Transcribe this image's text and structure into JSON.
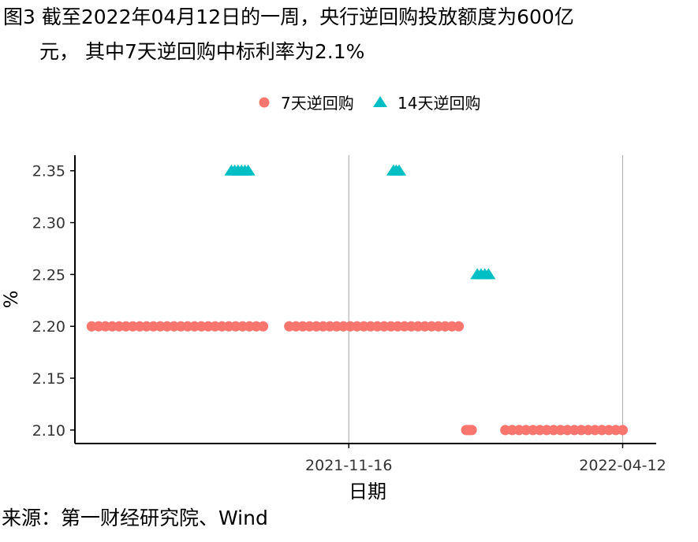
{
  "figure": {
    "caption_line1": "图3  截至2022年04月12日的一周，央行逆回购投放额度为600亿",
    "caption_line2": "元， 其中7天逆回购中标利率为2.1%",
    "source": "来源：第一财经研究院、Wind"
  },
  "chart_data": {
    "type": "scatter",
    "title": "",
    "xlabel": "日期",
    "ylabel": "%",
    "x_ticks": [
      "2021-11-16",
      "2022-04-12"
    ],
    "y_ticks": [
      2.1,
      2.15,
      2.2,
      2.25,
      2.3,
      2.35
    ],
    "xlim": [
      "2021-06-22",
      "2022-04-30"
    ],
    "ylim": [
      2.087,
      2.365
    ],
    "grid": "vertical major lines at x ticks",
    "legend_position": "top",
    "colors": {
      "seven_day": "#F8766D",
      "fourteen_day": "#00BFC4",
      "grid": "#b3b3b3",
      "axis": "#000000"
    },
    "series": [
      {
        "name": "7天逆回购",
        "marker": "circle",
        "points": [
          {
            "start": "2021-07-01",
            "end": "2021-10-01",
            "count": 26,
            "y": 2.2
          },
          {
            "start": "2021-10-15",
            "end": "2022-01-14",
            "count": 26,
            "y": 2.2
          },
          {
            "start": "2022-01-18",
            "end": "2022-01-21",
            "count": 4,
            "y": 2.1
          },
          {
            "start": "2022-02-08",
            "end": "2022-04-12",
            "count": 18,
            "y": 2.1
          }
        ]
      },
      {
        "name": "14天逆回购",
        "marker": "triangle",
        "points": [
          {
            "start": "2021-09-14",
            "end": "2021-09-23",
            "count": 6,
            "y": 2.35
          },
          {
            "start": "2021-12-10",
            "end": "2021-12-13",
            "count": 3,
            "y": 2.35
          },
          {
            "start": "2022-01-24",
            "end": "2022-01-30",
            "count": 4,
            "y": 2.25
          }
        ]
      }
    ]
  }
}
